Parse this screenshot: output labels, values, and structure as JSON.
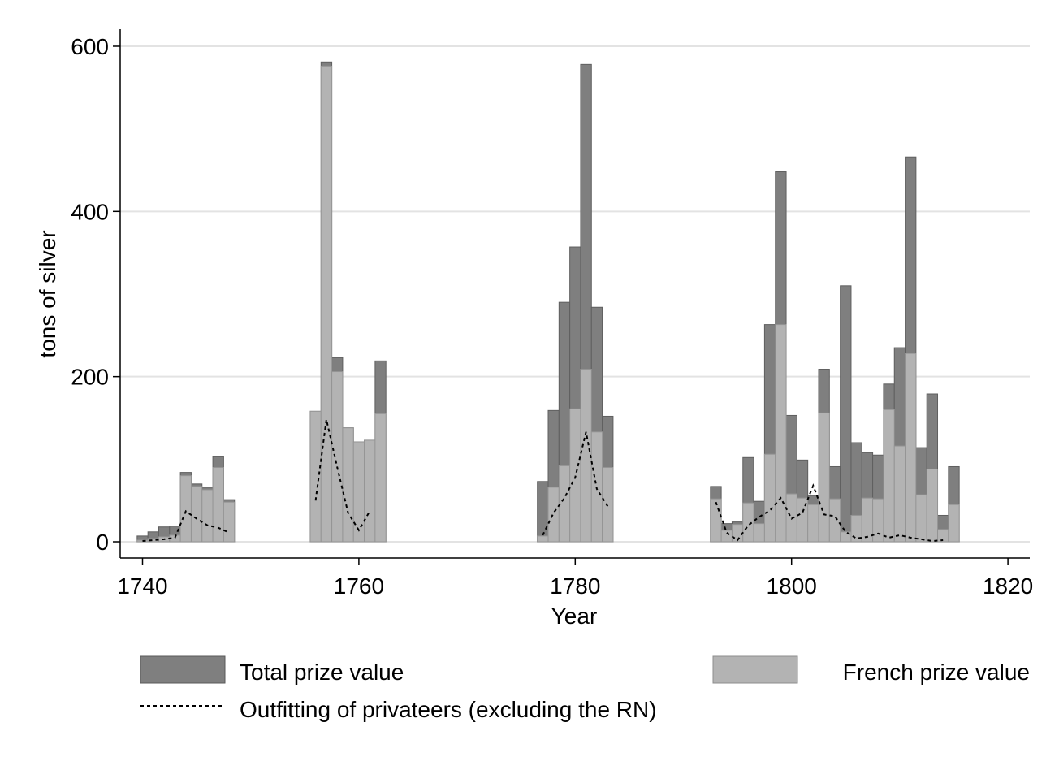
{
  "chart_data": {
    "type": "bar",
    "xlabel": "Year",
    "ylabel": "tons of silver",
    "xlim": [
      1740,
      1820
    ],
    "ylim": [
      0,
      620
    ],
    "x_ticks": [
      1740,
      1760,
      1780,
      1800,
      1820
    ],
    "y_ticks": [
      0,
      200,
      400,
      600
    ],
    "grid": "horizontal",
    "legend_position": "bottom",
    "colors": {
      "total": "#7f7f7f",
      "french": "#b3b3b3",
      "outfitting": "#000000",
      "grid": "#e3e3e3"
    },
    "series": [
      {
        "name": "Total prize value",
        "kind": "bar",
        "x": [
          1740,
          1741,
          1742,
          1743,
          1744,
          1745,
          1746,
          1747,
          1748,
          1756,
          1757,
          1758,
          1759,
          1760,
          1761,
          1762,
          1777,
          1778,
          1779,
          1780,
          1781,
          1782,
          1783,
          1793,
          1794,
          1795,
          1796,
          1797,
          1798,
          1799,
          1800,
          1801,
          1802,
          1803,
          1804,
          1805,
          1806,
          1807,
          1808,
          1809,
          1810,
          1811,
          1812,
          1813,
          1814,
          1815
        ],
        "values": [
          7,
          12,
          18,
          19,
          84,
          70,
          66,
          103,
          51,
          158,
          581,
          223,
          138,
          121,
          123,
          219,
          73,
          159,
          290,
          357,
          578,
          284,
          152,
          67,
          22,
          24,
          102,
          49,
          263,
          448,
          153,
          99,
          56,
          209,
          91,
          310,
          120,
          108,
          105,
          191,
          235,
          466,
          114,
          179,
          32,
          91
        ]
      },
      {
        "name": "French prize value",
        "kind": "bar",
        "x": [
          1740,
          1741,
          1742,
          1743,
          1744,
          1745,
          1746,
          1747,
          1748,
          1756,
          1757,
          1758,
          1759,
          1760,
          1761,
          1762,
          1777,
          1778,
          1779,
          1780,
          1781,
          1782,
          1783,
          1793,
          1794,
          1795,
          1796,
          1797,
          1798,
          1799,
          1800,
          1801,
          1802,
          1803,
          1804,
          1805,
          1806,
          1807,
          1808,
          1809,
          1810,
          1811,
          1812,
          1813,
          1814,
          1815
        ],
        "values": [
          2,
          4,
          6,
          8,
          80,
          67,
          63,
          90,
          48,
          158,
          576,
          206,
          138,
          121,
          123,
          155,
          7,
          66,
          92,
          161,
          209,
          133,
          90,
          52,
          14,
          21,
          47,
          22,
          106,
          263,
          58,
          53,
          45,
          156,
          52,
          12,
          32,
          53,
          52,
          160,
          116,
          228,
          57,
          88,
          15,
          45
        ]
      },
      {
        "name": "Outfitting of privateers (excluding the RN)",
        "kind": "line",
        "style": "dotted",
        "x": [
          1740,
          1741,
          1742,
          1743,
          1744,
          1745,
          1746,
          1747,
          1748,
          1756,
          1757,
          1758,
          1759,
          1760,
          1761,
          1762,
          1777,
          1778,
          1779,
          1780,
          1781,
          1782,
          1783,
          1793,
          1794,
          1795,
          1796,
          1797,
          1798,
          1799,
          1800,
          1801,
          1802,
          1803,
          1804,
          1805,
          1806,
          1807,
          1808,
          1809,
          1810,
          1811,
          1812,
          1813,
          1814,
          1815
        ],
        "values": [
          1,
          2,
          3,
          5,
          37,
          28,
          20,
          17,
          11,
          50,
          148,
          90,
          35,
          14,
          37,
          null,
          8,
          35,
          53,
          78,
          133,
          64,
          43,
          48,
          11,
          2,
          20,
          30,
          38,
          53,
          28,
          35,
          68,
          33,
          31,
          12,
          4,
          6,
          10,
          5,
          8,
          5,
          3,
          1,
          2,
          null
        ]
      }
    ]
  },
  "legend": {
    "items": [
      {
        "label": "Total prize value",
        "key": "total"
      },
      {
        "label": "French prize value",
        "key": "french"
      },
      {
        "label": "Outfitting of privateers (excluding the RN)",
        "key": "outfitting"
      }
    ]
  }
}
